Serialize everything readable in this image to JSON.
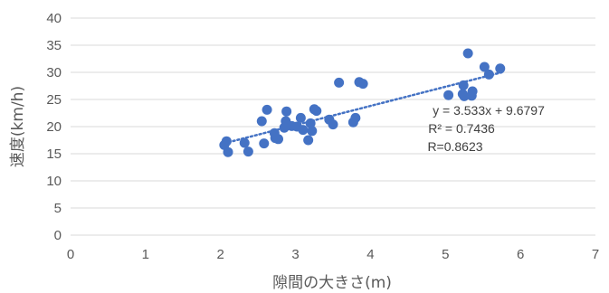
{
  "chart_data": {
    "type": "scatter",
    "xlabel": "隙間の大きさ(m)",
    "ylabel": "速度(km/h)",
    "xlim": [
      0,
      7
    ],
    "ylim": [
      0,
      40
    ],
    "x_ticks": [
      "0",
      "1",
      "2",
      "3",
      "4",
      "5",
      "6",
      "7"
    ],
    "y_ticks": [
      "0",
      "5",
      "10",
      "15",
      "20",
      "25",
      "30",
      "35",
      "40"
    ],
    "grid": "horizontal",
    "colors": {
      "points": "#4472c4",
      "trendline": "#4472c4",
      "grid": "#d9d9d9",
      "text": "#595959"
    },
    "series": [
      {
        "points": [
          [
            2.05,
            16.6
          ],
          [
            2.08,
            17.3
          ],
          [
            2.1,
            15.3
          ],
          [
            2.32,
            17.0
          ],
          [
            2.37,
            15.4
          ],
          [
            2.55,
            21.0
          ],
          [
            2.58,
            16.9
          ],
          [
            2.62,
            23.1
          ],
          [
            2.72,
            18.8
          ],
          [
            2.73,
            17.9
          ],
          [
            2.77,
            17.7
          ],
          [
            2.85,
            19.8
          ],
          [
            2.87,
            21.0
          ],
          [
            2.88,
            22.8
          ],
          [
            2.95,
            20.1
          ],
          [
            3.02,
            20.0
          ],
          [
            3.07,
            21.6
          ],
          [
            3.1,
            19.4
          ],
          [
            3.17,
            17.5
          ],
          [
            3.2,
            20.6
          ],
          [
            3.22,
            19.2
          ],
          [
            3.25,
            23.2
          ],
          [
            3.28,
            22.9
          ],
          [
            3.45,
            21.3
          ],
          [
            3.5,
            20.4
          ],
          [
            3.58,
            28.1
          ],
          [
            3.77,
            20.8
          ],
          [
            3.8,
            21.6
          ],
          [
            3.85,
            28.2
          ],
          [
            3.9,
            27.9
          ],
          [
            5.04,
            25.8
          ],
          [
            5.23,
            26.0
          ],
          [
            5.24,
            27.6
          ],
          [
            5.25,
            25.6
          ],
          [
            5.3,
            33.5
          ],
          [
            5.35,
            25.7
          ],
          [
            5.36,
            26.5
          ],
          [
            5.52,
            31.0
          ],
          [
            5.58,
            29.6
          ],
          [
            5.73,
            30.7
          ]
        ]
      }
    ],
    "trendline": {
      "style": "dotted",
      "slope": 3.533,
      "intercept": 9.6797,
      "x_range": [
        2.05,
        5.75
      ],
      "labels": [
        "y = 3.533x + 9.6797",
        "R² = 0.7436",
        "R=0.8623"
      ]
    }
  }
}
